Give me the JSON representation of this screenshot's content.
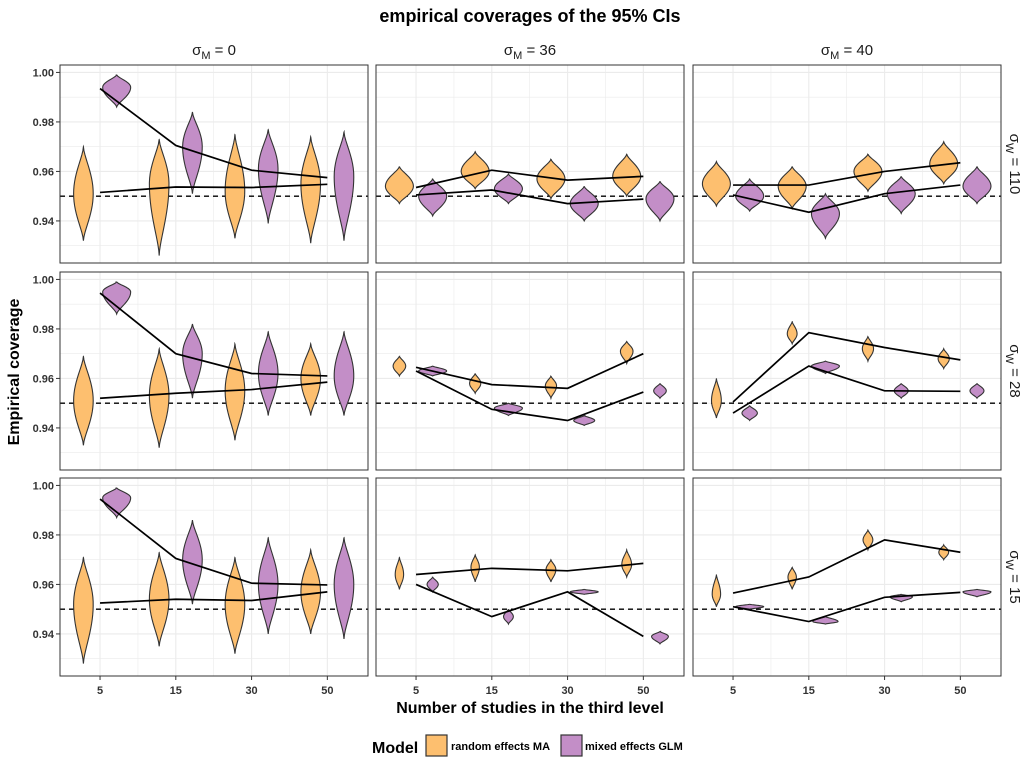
{
  "chart_data": {
    "type": "violin",
    "title": "empirical coverages of the 95% CIs",
    "xlabel": "Number of studies in the third level",
    "ylabel": "Empirical coverage",
    "categories": [
      "5",
      "15",
      "30",
      "50"
    ],
    "reference_line": 0.95,
    "ylim": [
      0.923,
      1.003
    ],
    "yticks": [
      "0.94",
      "0.96",
      "0.98",
      "1.00"
    ],
    "column_strips": [
      {
        "symbol": "σ",
        "sub": "M",
        "rest": " = 0"
      },
      {
        "symbol": "σ",
        "sub": "M",
        "rest": " = 36"
      },
      {
        "symbol": "σ",
        "sub": "M",
        "rest": " = 40"
      }
    ],
    "row_strips": [
      {
        "symbol": "σ",
        "sub": "W",
        "rest": " = 110"
      },
      {
        "symbol": "σ",
        "sub": "W",
        "rest": " = 28"
      },
      {
        "symbol": "σ",
        "sub": "W",
        "rest": " = 15"
      }
    ],
    "legend": {
      "title": "Model",
      "placement": "bottom",
      "entries": [
        {
          "label": "random effects MA",
          "color": "#fdbf6f"
        },
        {
          "label": "mixed effects GLM",
          "color": "#c38ec7"
        }
      ]
    },
    "panels": [
      {
        "row": 0,
        "col": 0,
        "series": [
          {
            "name": "random effects MA",
            "line": [
              0.9515,
              0.9537,
              0.9535,
              0.9548
            ],
            "violins": [
              {
                "center": 0.951,
                "min": 0.932,
                "max": 0.97,
                "width": 0.7
              },
              {
                "center": 0.955,
                "min": 0.926,
                "max": 0.973,
                "width": 0.7
              },
              {
                "center": 0.952,
                "min": 0.933,
                "max": 0.975,
                "width": 0.7
              },
              {
                "center": 0.955,
                "min": 0.931,
                "max": 0.974,
                "width": 0.7
              }
            ]
          },
          {
            "name": "mixed effects GLM",
            "line": [
              0.9935,
              0.9705,
              0.9605,
              0.9575
            ],
            "violins": [
              {
                "center": 0.994,
                "min": 0.986,
                "max": 0.999,
                "width": 1.0
              },
              {
                "center": 0.97,
                "min": 0.951,
                "max": 0.984,
                "width": 0.7
              },
              {
                "center": 0.961,
                "min": 0.939,
                "max": 0.977,
                "width": 0.7
              },
              {
                "center": 0.958,
                "min": 0.932,
                "max": 0.976,
                "width": 0.7
              }
            ]
          }
        ]
      },
      {
        "row": 0,
        "col": 1,
        "series": [
          {
            "name": "random effects MA",
            "line": [
              0.9535,
              0.9605,
              0.9565,
              0.958
            ],
            "violins": [
              {
                "center": 0.954,
                "min": 0.947,
                "max": 0.962,
                "width": 1.0
              },
              {
                "center": 0.96,
                "min": 0.953,
                "max": 0.968,
                "width": 1.0
              },
              {
                "center": 0.957,
                "min": 0.949,
                "max": 0.965,
                "width": 1.0
              },
              {
                "center": 0.958,
                "min": 0.95,
                "max": 0.967,
                "width": 1.0
              }
            ]
          },
          {
            "name": "mixed effects GLM",
            "line": [
              0.9505,
              0.9525,
              0.947,
              0.9488
            ],
            "violins": [
              {
                "center": 0.95,
                "min": 0.942,
                "max": 0.957,
                "width": 1.0
              },
              {
                "center": 0.953,
                "min": 0.947,
                "max": 0.959,
                "width": 1.0
              },
              {
                "center": 0.947,
                "min": 0.94,
                "max": 0.954,
                "width": 1.0
              },
              {
                "center": 0.949,
                "min": 0.94,
                "max": 0.956,
                "width": 1.0
              }
            ]
          }
        ]
      },
      {
        "row": 0,
        "col": 2,
        "series": [
          {
            "name": "random effects MA",
            "line": [
              0.9545,
              0.9545,
              0.96,
              0.9635
            ],
            "violins": [
              {
                "center": 0.955,
                "min": 0.946,
                "max": 0.964,
                "width": 1.0
              },
              {
                "center": 0.954,
                "min": 0.945,
                "max": 0.962,
                "width": 1.0
              },
              {
                "center": 0.96,
                "min": 0.952,
                "max": 0.967,
                "width": 1.0
              },
              {
                "center": 0.963,
                "min": 0.955,
                "max": 0.972,
                "width": 1.0
              }
            ]
          },
          {
            "name": "mixed effects GLM",
            "line": [
              0.9505,
              0.9435,
              0.951,
              0.9545
            ],
            "violins": [
              {
                "center": 0.95,
                "min": 0.944,
                "max": 0.957,
                "width": 1.0
              },
              {
                "center": 0.943,
                "min": 0.933,
                "max": 0.951,
                "width": 1.0
              },
              {
                "center": 0.951,
                "min": 0.943,
                "max": 0.958,
                "width": 1.0
              },
              {
                "center": 0.954,
                "min": 0.947,
                "max": 0.962,
                "width": 1.0
              }
            ]
          }
        ]
      },
      {
        "row": 1,
        "col": 0,
        "series": [
          {
            "name": "random effects MA",
            "line": [
              0.952,
              0.954,
              0.9555,
              0.9585
            ],
            "violins": [
              {
                "center": 0.951,
                "min": 0.933,
                "max": 0.969,
                "width": 0.7
              },
              {
                "center": 0.953,
                "min": 0.932,
                "max": 0.972,
                "width": 0.7
              },
              {
                "center": 0.955,
                "min": 0.935,
                "max": 0.974,
                "width": 0.7
              },
              {
                "center": 0.96,
                "min": 0.945,
                "max": 0.974,
                "width": 0.7
              }
            ]
          },
          {
            "name": "mixed effects GLM",
            "line": [
              0.9945,
              0.97,
              0.962,
              0.961
            ],
            "violins": [
              {
                "center": 0.995,
                "min": 0.986,
                "max": 0.999,
                "width": 1.0
              },
              {
                "center": 0.97,
                "min": 0.952,
                "max": 0.982,
                "width": 0.7
              },
              {
                "center": 0.962,
                "min": 0.945,
                "max": 0.979,
                "width": 0.7
              },
              {
                "center": 0.961,
                "min": 0.945,
                "max": 0.979,
                "width": 0.7
              }
            ]
          }
        ]
      },
      {
        "row": 1,
        "col": 1,
        "series": [
          {
            "name": "random effects MA",
            "line": [
              0.9645,
              0.9575,
              0.956,
              0.97
            ],
            "violins": [
              {
                "center": 0.965,
                "min": 0.961,
                "max": 0.969,
                "width": 0.45
              },
              {
                "center": 0.958,
                "min": 0.954,
                "max": 0.962,
                "width": 0.4
              },
              {
                "center": 0.957,
                "min": 0.952,
                "max": 0.961,
                "width": 0.4
              },
              {
                "center": 0.971,
                "min": 0.966,
                "max": 0.975,
                "width": 0.45
              }
            ]
          },
          {
            "name": "mixed effects GLM",
            "line": [
              0.963,
              0.9475,
              0.943,
              0.9545
            ],
            "violins": [
              {
                "center": 0.963,
                "min": 0.961,
                "max": 0.965,
                "width": 1.0
              },
              {
                "center": 0.948,
                "min": 0.945,
                "max": 0.95,
                "width": 1.0
              },
              {
                "center": 0.943,
                "min": 0.941,
                "max": 0.945,
                "width": 0.75
              },
              {
                "center": 0.955,
                "min": 0.952,
                "max": 0.958,
                "width": 0.45
              }
            ]
          }
        ]
      },
      {
        "row": 1,
        "col": 2,
        "series": [
          {
            "name": "random effects MA",
            "line": [
              0.9505,
              0.9785,
              0.9725,
              0.9675
            ],
            "violins": [
              {
                "center": 0.951,
                "min": 0.944,
                "max": 0.96,
                "width": 0.35
              },
              {
                "center": 0.978,
                "min": 0.974,
                "max": 0.983,
                "width": 0.35
              },
              {
                "center": 0.972,
                "min": 0.967,
                "max": 0.977,
                "width": 0.4
              },
              {
                "center": 0.968,
                "min": 0.964,
                "max": 0.972,
                "width": 0.4
              }
            ]
          },
          {
            "name": "mixed effects GLM",
            "line": [
              0.946,
              0.965,
              0.955,
              0.9548
            ],
            "violins": [
              {
                "center": 0.946,
                "min": 0.943,
                "max": 0.949,
                "width": 0.55
              },
              {
                "center": 0.965,
                "min": 0.962,
                "max": 0.967,
                "width": 1.0
              },
              {
                "center": 0.955,
                "min": 0.952,
                "max": 0.958,
                "width": 0.5
              },
              {
                "center": 0.955,
                "min": 0.952,
                "max": 0.958,
                "width": 0.5
              }
            ]
          }
        ]
      },
      {
        "row": 2,
        "col": 0,
        "series": [
          {
            "name": "random effects MA",
            "line": [
              0.9525,
              0.954,
              0.9535,
              0.957
            ],
            "violins": [
              {
                "center": 0.952,
                "min": 0.928,
                "max": 0.971,
                "width": 0.7
              },
              {
                "center": 0.954,
                "min": 0.935,
                "max": 0.973,
                "width": 0.7
              },
              {
                "center": 0.952,
                "min": 0.932,
                "max": 0.971,
                "width": 0.7
              },
              {
                "center": 0.957,
                "min": 0.94,
                "max": 0.974,
                "width": 0.7
              }
            ]
          },
          {
            "name": "mixed effects GLM",
            "line": [
              0.9945,
              0.9705,
              0.9605,
              0.9598
            ],
            "violins": [
              {
                "center": 0.995,
                "min": 0.987,
                "max": 0.999,
                "width": 1.0
              },
              {
                "center": 0.97,
                "min": 0.952,
                "max": 0.986,
                "width": 0.7
              },
              {
                "center": 0.96,
                "min": 0.94,
                "max": 0.979,
                "width": 0.7
              },
              {
                "center": 0.96,
                "min": 0.938,
                "max": 0.979,
                "width": 0.7
              }
            ]
          }
        ]
      },
      {
        "row": 2,
        "col": 1,
        "series": [
          {
            "name": "random effects MA",
            "line": [
              0.964,
              0.9665,
              0.9655,
              0.9685
            ],
            "violins": [
              {
                "center": 0.964,
                "min": 0.958,
                "max": 0.971,
                "width": 0.3
              },
              {
                "center": 0.967,
                "min": 0.961,
                "max": 0.972,
                "width": 0.3
              },
              {
                "center": 0.966,
                "min": 0.961,
                "max": 0.97,
                "width": 0.35
              },
              {
                "center": 0.968,
                "min": 0.963,
                "max": 0.974,
                "width": 0.35
              }
            ]
          },
          {
            "name": "mixed effects GLM",
            "line": [
              0.96,
              0.947,
              0.957,
              0.939
            ],
            "violins": [
              {
                "center": 0.96,
                "min": 0.957,
                "max": 0.963,
                "width": 0.4
              },
              {
                "center": 0.947,
                "min": 0.944,
                "max": 0.95,
                "width": 0.35
              },
              {
                "center": 0.957,
                "min": 0.956,
                "max": 0.958,
                "width": 1.0
              },
              {
                "center": 0.939,
                "min": 0.936,
                "max": 0.941,
                "width": 0.6
              }
            ]
          }
        ]
      },
      {
        "row": 2,
        "col": 2,
        "series": [
          {
            "name": "random effects MA",
            "line": [
              0.9565,
              0.963,
              0.978,
              0.973
            ],
            "violins": [
              {
                "center": 0.956,
                "min": 0.951,
                "max": 0.964,
                "width": 0.3
              },
              {
                "center": 0.963,
                "min": 0.958,
                "max": 0.967,
                "width": 0.3
              },
              {
                "center": 0.978,
                "min": 0.974,
                "max": 0.982,
                "width": 0.35
              },
              {
                "center": 0.973,
                "min": 0.97,
                "max": 0.976,
                "width": 0.35
              }
            ]
          },
          {
            "name": "mixed effects GLM",
            "line": [
              0.951,
              0.945,
              0.9548,
              0.9568
            ],
            "violins": [
              {
                "center": 0.951,
                "min": 0.95,
                "max": 0.952,
                "width": 1.0
              },
              {
                "center": 0.945,
                "min": 0.944,
                "max": 0.947,
                "width": 0.9
              },
              {
                "center": 0.955,
                "min": 0.953,
                "max": 0.956,
                "width": 0.8
              },
              {
                "center": 0.957,
                "min": 0.955,
                "max": 0.958,
                "width": 1.0
              }
            ]
          }
        ]
      }
    ]
  }
}
